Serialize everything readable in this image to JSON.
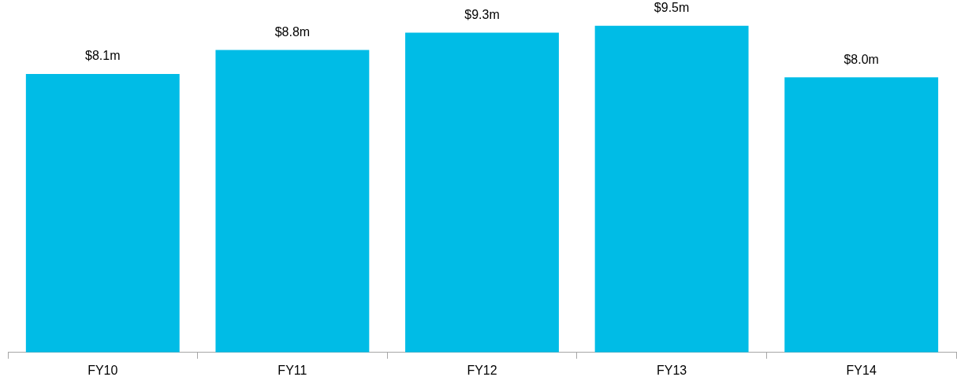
{
  "chart_data": {
    "type": "bar",
    "categories": [
      "FY10",
      "FY11",
      "FY12",
      "FY13",
      "FY14"
    ],
    "values": [
      8.1,
      8.8,
      9.3,
      9.5,
      8.0
    ],
    "value_labels": [
      "$8.1m",
      "$8.8m",
      "$9.3m",
      "$9.5m",
      "$8.0m"
    ],
    "color": "#00bce6",
    "tick_labels": "x",
    "grid": false,
    "legend": false
  }
}
